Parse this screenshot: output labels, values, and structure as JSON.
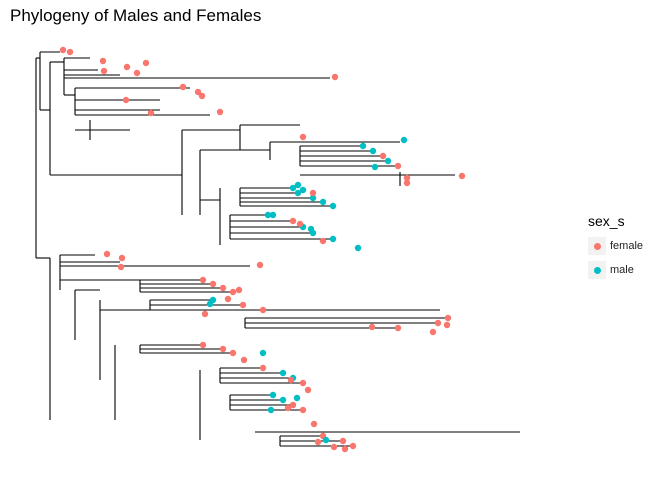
{
  "title": "Phylogeny of Males and Females",
  "legend": {
    "title": "sex_s",
    "items": [
      {
        "label": "female",
        "color": "#F8766D"
      },
      {
        "label": "male",
        "color": "#00BFC4"
      }
    ]
  },
  "colors": {
    "female": "#F8766D",
    "male": "#00BFC4",
    "branch": "#000000"
  }
}
